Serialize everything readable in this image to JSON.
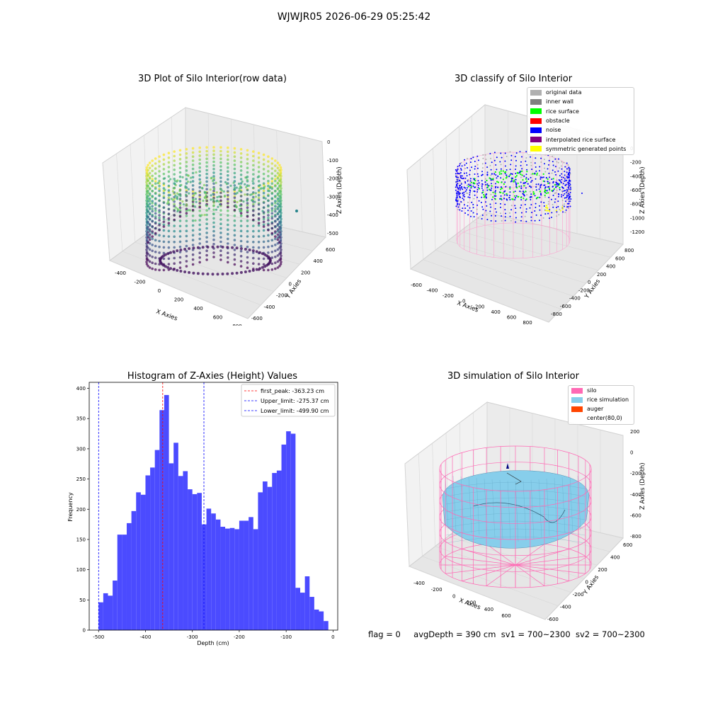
{
  "suptitle": "WJWJR05 2026-06-29 05:25:42",
  "footer": {
    "flag": "flag = 0",
    "avg": "avgDepth = 390 cm",
    "sv1": "sv1 = 700~2300",
    "sv2": "sv2 = 700~2300"
  },
  "colors": {
    "histogram_bar": "#4b4bff",
    "peak_line": "#ff0000",
    "limit_line": "#0000ff",
    "silo": "#ff69b4",
    "rice": "#87ceeb",
    "auger": "#ff4500"
  },
  "chart_data": [
    {
      "type": "scatter3d",
      "title": "3D Plot of Silo Interior(row data)",
      "xlabel": "X Axies",
      "ylabel": "Y Axies",
      "zlabel": "Z Axies (Depth)",
      "xticks": [
        "-400",
        "-200",
        "0",
        "200",
        "400",
        "600",
        "800"
      ],
      "yticks": [
        "-600",
        "-400",
        "-200",
        "0",
        "200",
        "400",
        "600"
      ],
      "zticks": [
        "0",
        "-100",
        "-200",
        "-300",
        "-400",
        "-500"
      ],
      "colormap": "viridis"
    },
    {
      "type": "scatter3d",
      "title": "3D classify of Silo Interior",
      "xlabel": "X Axies",
      "ylabel": "Y Axies",
      "zlabel": "Z Axies (Depth)",
      "xticks": [
        "-600",
        "-400",
        "-200",
        "0",
        "200",
        "400",
        "600",
        "800"
      ],
      "yticks": [
        "-800",
        "-600",
        "-400",
        "-200",
        "0",
        "200",
        "400",
        "600",
        "800"
      ],
      "zticks": [
        "0",
        "-200",
        "-400",
        "-600",
        "-800",
        "-1000",
        "-1200"
      ],
      "legend": [
        {
          "label": "original data",
          "color": "#b0b0b0"
        },
        {
          "label": "inner wall",
          "color": "#808080"
        },
        {
          "label": "rice surface",
          "color": "#00ff00"
        },
        {
          "label": "obstacle",
          "color": "#ff0000"
        },
        {
          "label": "noise",
          "color": "#0000ff"
        },
        {
          "label": "interpolated rice surface",
          "color": "#800080"
        },
        {
          "label": "symmetric generated points",
          "color": "#ffff00"
        }
      ]
    },
    {
      "type": "histogram",
      "title": "Histogram of Z-Axies (Height) Values",
      "xlabel": "Depth (cm)",
      "ylabel": "Frequency",
      "xlim": [
        -520,
        10
      ],
      "ylim": [
        0,
        410
      ],
      "xticks": [
        -500,
        -400,
        -300,
        -200,
        -100,
        0
      ],
      "yticks": [
        0,
        50,
        100,
        150,
        200,
        250,
        300,
        350,
        400
      ],
      "bin_start": -500,
      "bin_width": 10,
      "values": [
        46,
        61,
        57,
        82,
        158,
        158,
        177,
        197,
        228,
        224,
        256,
        269,
        298,
        364,
        389,
        276,
        310,
        255,
        263,
        233,
        225,
        227,
        175,
        201,
        193,
        183,
        171,
        168,
        169,
        167,
        181,
        181,
        187,
        167,
        228,
        246,
        237,
        260,
        264,
        307,
        329,
        325,
        70,
        62,
        89,
        55,
        34,
        31,
        15
      ],
      "vlines": [
        {
          "x": -363.23,
          "label": "first_peak: -363.23 cm",
          "color": "#ff0000"
        },
        {
          "x": -275.37,
          "label": "Upper_limit: -275.37 cm",
          "color": "#0000ff"
        },
        {
          "x": -499.9,
          "label": "Lower_limit: -499.90 cm",
          "color": "#0000ff"
        }
      ]
    },
    {
      "type": "surface3d",
      "title": "3D simulation of Silo Interior",
      "xlabel": "X Axies",
      "ylabel": "Y Axies",
      "zlabel": "Z Axies (Depth)",
      "xticks": [
        "-400",
        "-200",
        "0",
        "200",
        "400",
        "600"
      ],
      "yticks": [
        "-600",
        "-400",
        "-200",
        "0",
        "200",
        "400",
        "600"
      ],
      "zticks": [
        "200",
        "0",
        "-200",
        "-400",
        "-600",
        "-800"
      ],
      "legend": [
        {
          "label": "silo",
          "color": "#ff69b4"
        },
        {
          "label": "rice simulation",
          "color": "#87ceeb"
        },
        {
          "label": "auger",
          "color": "#ff4500"
        },
        {
          "label": "center(80,0)",
          "color": ""
        }
      ]
    }
  ]
}
